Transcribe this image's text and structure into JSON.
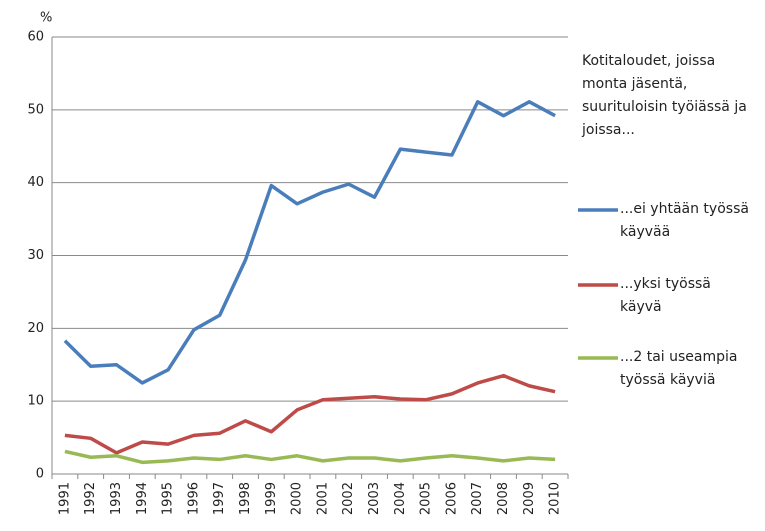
{
  "chart_data": {
    "type": "line",
    "y_axis_label": "%",
    "legend_title": "Kotitaloudet, joissa monta jäsentä, suurituloisin työiässä ja joissa...",
    "categories": [
      "1991",
      "1992",
      "1993",
      "1994",
      "1995",
      "1996",
      "1997",
      "1998",
      "1999",
      "2000",
      "2001",
      "2002",
      "2003",
      "2004",
      "2005",
      "2006",
      "2007",
      "2008",
      "2009",
      "2010"
    ],
    "series": [
      {
        "name": "...ei yhtään työssä käyvää",
        "color": "#4a7ebb",
        "values": [
          18.3,
          14.8,
          15.0,
          12.5,
          14.3,
          19.8,
          21.8,
          29.4,
          39.6,
          37.1,
          38.7,
          39.8,
          38.0,
          44.6,
          44.2,
          43.8,
          51.1,
          49.2,
          51.1,
          49.2
        ]
      },
      {
        "name": "...yksi työssä käyvä",
        "color": "#be4b48",
        "values": [
          5.3,
          4.9,
          2.9,
          4.4,
          4.1,
          5.3,
          5.6,
          7.3,
          5.8,
          8.8,
          10.2,
          10.4,
          10.6,
          10.3,
          10.2,
          11.0,
          12.5,
          13.5,
          12.1,
          11.3
        ]
      },
      {
        "name": "...2 tai useampia työssä käyviä",
        "color": "#98b954",
        "values": [
          3.1,
          2.3,
          2.5,
          1.6,
          1.8,
          2.2,
          2.0,
          2.5,
          2.0,
          2.5,
          1.8,
          2.2,
          2.2,
          1.8,
          2.2,
          2.5,
          2.2,
          1.8,
          2.2,
          2.0
        ]
      }
    ],
    "ylim": [
      0,
      60
    ],
    "yticks": [
      0,
      10,
      20,
      30,
      40,
      50,
      60
    ],
    "grid": true,
    "legend": "right"
  }
}
